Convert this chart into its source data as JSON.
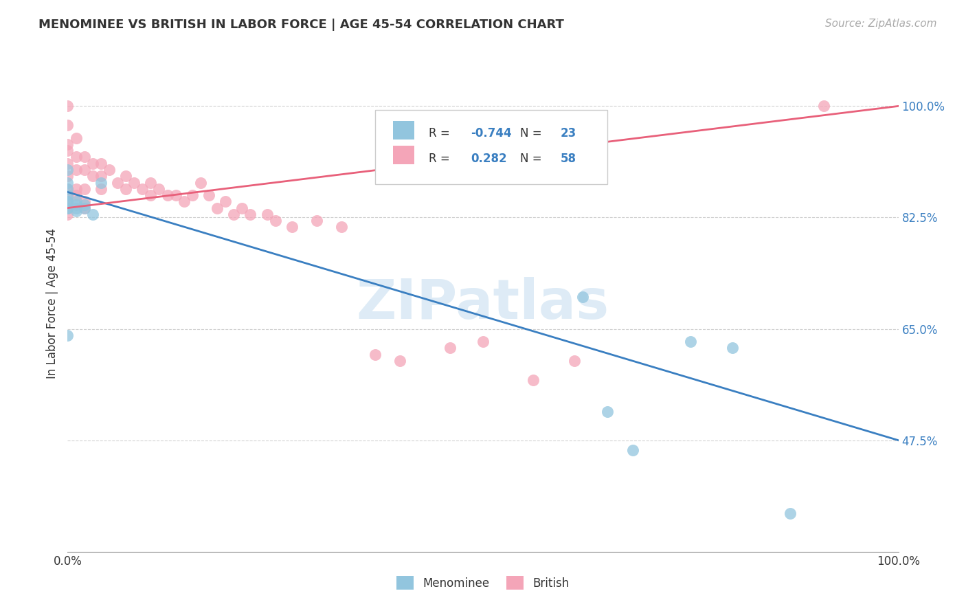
{
  "title": "MENOMINEE VS BRITISH IN LABOR FORCE | AGE 45-54 CORRELATION CHART",
  "source_text": "Source: ZipAtlas.com",
  "ylabel": "In Labor Force | Age 45-54",
  "xlim": [
    0.0,
    1.0
  ],
  "ylim": [
    0.3,
    1.08
  ],
  "yticks": [
    0.475,
    0.65,
    0.825,
    1.0
  ],
  "ytick_labels": [
    "47.5%",
    "65.0%",
    "82.5%",
    "100.0%"
  ],
  "legend_R_menominee": "-0.744",
  "legend_N_menominee": "23",
  "legend_R_british": "0.282",
  "legend_N_british": "58",
  "menominee_color": "#92c5de",
  "british_color": "#f4a5b8",
  "trendline_menominee_color": "#3a7fc1",
  "trendline_british_color": "#e8607a",
  "watermark_color": "#c8dff0",
  "menominee_x": [
    0.0,
    0.0,
    0.0,
    0.0,
    0.0,
    0.0,
    0.0,
    0.0,
    0.01,
    0.01,
    0.01,
    0.01,
    0.02,
    0.02,
    0.03,
    0.04,
    0.62,
    0.65,
    0.68,
    0.75,
    0.8,
    0.87,
    0.0
  ],
  "menominee_y": [
    0.9,
    0.88,
    0.87,
    0.86,
    0.85,
    0.85,
    0.84,
    0.84,
    0.85,
    0.845,
    0.84,
    0.835,
    0.845,
    0.84,
    0.83,
    0.88,
    0.7,
    0.52,
    0.46,
    0.63,
    0.62,
    0.36,
    0.64
  ],
  "british_x": [
    0.0,
    0.0,
    0.0,
    0.0,
    0.0,
    0.0,
    0.0,
    0.0,
    0.0,
    0.0,
    0.0,
    0.01,
    0.01,
    0.01,
    0.01,
    0.01,
    0.02,
    0.02,
    0.02,
    0.02,
    0.02,
    0.03,
    0.03,
    0.04,
    0.04,
    0.04,
    0.05,
    0.06,
    0.07,
    0.07,
    0.08,
    0.09,
    0.1,
    0.1,
    0.11,
    0.12,
    0.13,
    0.14,
    0.15,
    0.16,
    0.17,
    0.18,
    0.19,
    0.2,
    0.21,
    0.22,
    0.24,
    0.25,
    0.27,
    0.3,
    0.33,
    0.37,
    0.4,
    0.46,
    0.5,
    0.56,
    0.61,
    0.91
  ],
  "british_y": [
    1.0,
    0.97,
    0.94,
    0.93,
    0.91,
    0.89,
    0.87,
    0.86,
    0.85,
    0.84,
    0.83,
    0.95,
    0.92,
    0.9,
    0.87,
    0.86,
    0.92,
    0.9,
    0.87,
    0.85,
    0.84,
    0.91,
    0.89,
    0.91,
    0.89,
    0.87,
    0.9,
    0.88,
    0.89,
    0.87,
    0.88,
    0.87,
    0.88,
    0.86,
    0.87,
    0.86,
    0.86,
    0.85,
    0.86,
    0.88,
    0.86,
    0.84,
    0.85,
    0.83,
    0.84,
    0.83,
    0.83,
    0.82,
    0.81,
    0.82,
    0.81,
    0.61,
    0.6,
    0.62,
    0.63,
    0.57,
    0.6,
    1.0
  ],
  "trendline_menominee_x0": 0.0,
  "trendline_menominee_x1": 1.0,
  "trendline_menominee_y0": 0.865,
  "trendline_menominee_y1": 0.475,
  "trendline_british_x0": 0.0,
  "trendline_british_x1": 1.0,
  "trendline_british_y0": 0.84,
  "trendline_british_y1": 1.0
}
